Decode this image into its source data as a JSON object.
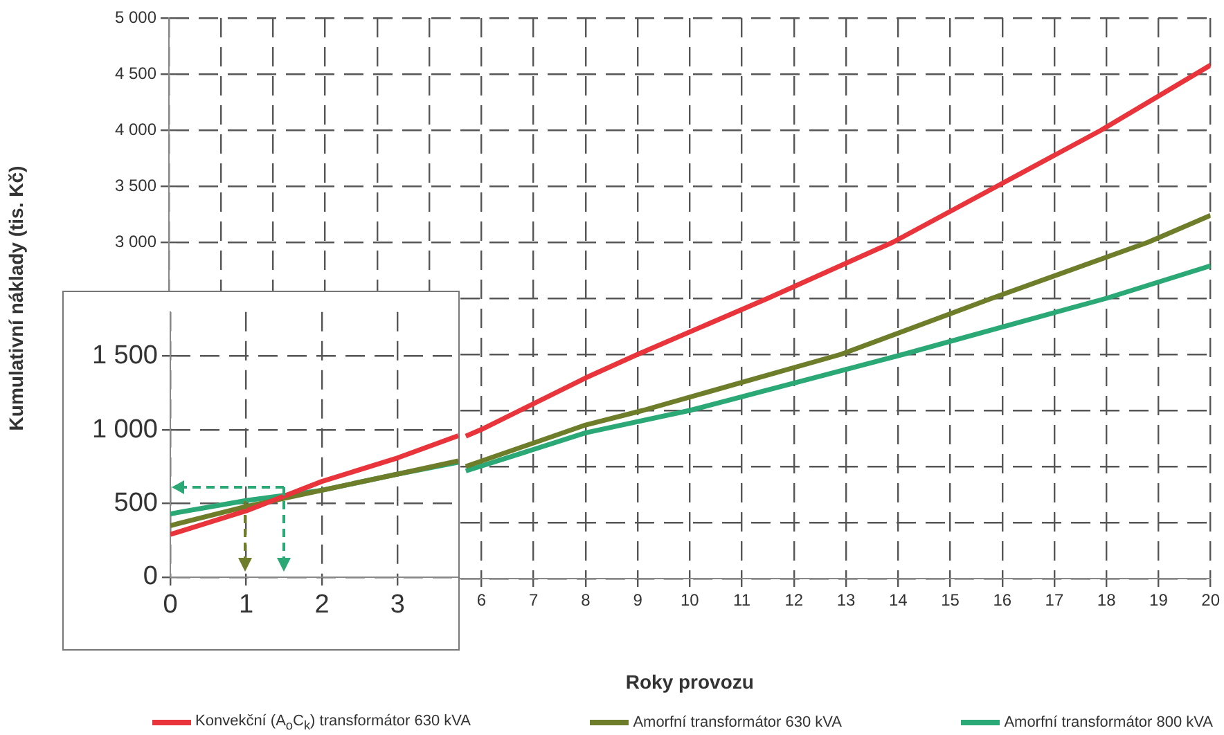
{
  "chart_data": [
    {
      "type": "line",
      "xlabel": "Roky provozu",
      "ylabel": "Kumulativní náklady (tis. Kč)",
      "xlim": [
        0,
        20
      ],
      "ylim": [
        0,
        5000
      ],
      "xticks": [
        {
          "value": 0,
          "label": null
        },
        {
          "value": 1,
          "label": null
        },
        {
          "value": 2,
          "label": null
        },
        {
          "value": 3,
          "label": null
        },
        {
          "value": 4,
          "label": null
        },
        {
          "value": 5,
          "label": null
        },
        6,
        7,
        8,
        9,
        10,
        11,
        12,
        13,
        14,
        15,
        16,
        17,
        18,
        19,
        20
      ],
      "yticks": [
        {
          "value": 0,
          "label": null
        },
        {
          "value": 500,
          "label": null
        },
        {
          "value": 1000,
          "label": null
        },
        {
          "value": 1500,
          "label": null
        },
        {
          "value": 2000,
          "label": null
        },
        {
          "value": 2500,
          "label": null
        },
        {
          "value": 3000,
          "label": "3 000"
        },
        {
          "value": 3500,
          "label": "3 500"
        },
        {
          "value": 4000,
          "label": "4 000"
        },
        {
          "value": 4500,
          "label": "4 500"
        },
        {
          "value": 5000,
          "label": "5 000"
        }
      ],
      "grid": true,
      "legend": "bottom",
      "marker": "none",
      "line_style": "solid",
      "series": [
        {
          "name": "Konvekční (A$_{o}$C$_{k}$) transformátor 630 kVA",
          "color": "#e8343a",
          "x": [
            5.7,
            6,
            8,
            9,
            11.5,
            13.9,
            15.9,
            17.9,
            20
          ],
          "values": [
            1270,
            1330,
            1790,
            2000,
            2500,
            3000,
            3500,
            4000,
            4580
          ]
        },
        {
          "name": "Amorfní transformátor 630 kVA",
          "color": "#6e7d2a",
          "x": [
            5.7,
            8,
            9.1,
            12.9,
            15.8,
            18.8,
            20
          ],
          "values": [
            1000,
            1370,
            1500,
            2000,
            2500,
            3000,
            3240
          ]
        },
        {
          "name": "Amorfní transformátor 800 kVA",
          "color": "#2aa876",
          "x": [
            5.7,
            8,
            10,
            14.1,
            18,
            20
          ],
          "values": [
            960,
            1300,
            1500,
            2000,
            2500,
            2790
          ]
        }
      ]
    },
    {
      "type": "line",
      "xlim": [
        0,
        3.8
      ],
      "ylim": [
        0,
        1800
      ],
      "xticks": [
        0,
        1,
        2,
        3
      ],
      "yticks": [
        0,
        500,
        {
          "value": 1000,
          "label": "1 000"
        },
        {
          "value": 1500,
          "label": "1 500"
        }
      ],
      "grid": true,
      "marker": "none",
      "line_style": "solid",
      "series": [
        {
          "color": "#e8343a",
          "x": [
            0,
            1,
            2,
            3,
            3.8
          ],
          "values": [
            290,
            450,
            650,
            810,
            960
          ]
        },
        {
          "color": "#6e7d2a",
          "x": [
            0,
            1,
            2,
            3,
            3.8
          ],
          "values": [
            350,
            480,
            590,
            700,
            790
          ]
        },
        {
          "color": "#2aa876",
          "x": [
            0,
            1,
            2,
            3,
            3.8
          ],
          "values": [
            430,
            520,
            590,
            700,
            780
          ]
        }
      ]
    }
  ]
}
